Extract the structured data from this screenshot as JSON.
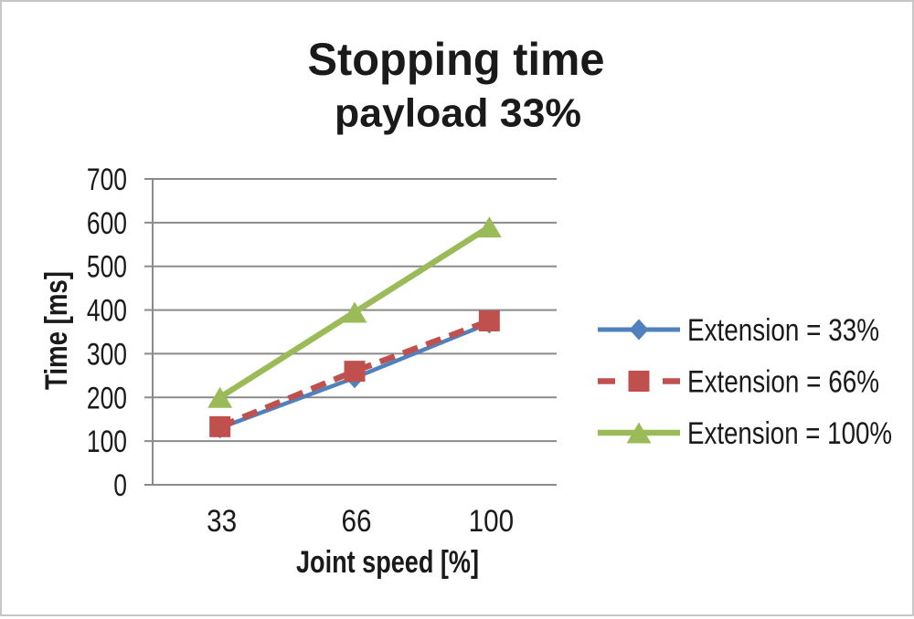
{
  "chart_data": {
    "type": "line",
    "title": "Stopping time",
    "subtitle": "payload 33%",
    "xlabel": "Joint speed [%]",
    "ylabel": "Time [ms]",
    "categories": [
      "33",
      "66",
      "100"
    ],
    "ylim": [
      0,
      700
    ],
    "y_tick_step": 100,
    "grid": true,
    "legend_position": "right",
    "series": [
      {
        "name": "Extension = 33%",
        "values": [
          130,
          245,
          370
        ],
        "color": "#4F81BD",
        "marker": "diamond",
        "line_style": "solid"
      },
      {
        "name": "Extension = 66%",
        "values": [
          133,
          260,
          375
        ],
        "color": "#C0504D",
        "marker": "square",
        "line_style": "dashed"
      },
      {
        "name": "Extension = 100%",
        "values": [
          200,
          395,
          590
        ],
        "color": "#9BBB59",
        "marker": "triangle",
        "line_style": "solid"
      }
    ],
    "gridline_color": "#8a8a8a"
  }
}
